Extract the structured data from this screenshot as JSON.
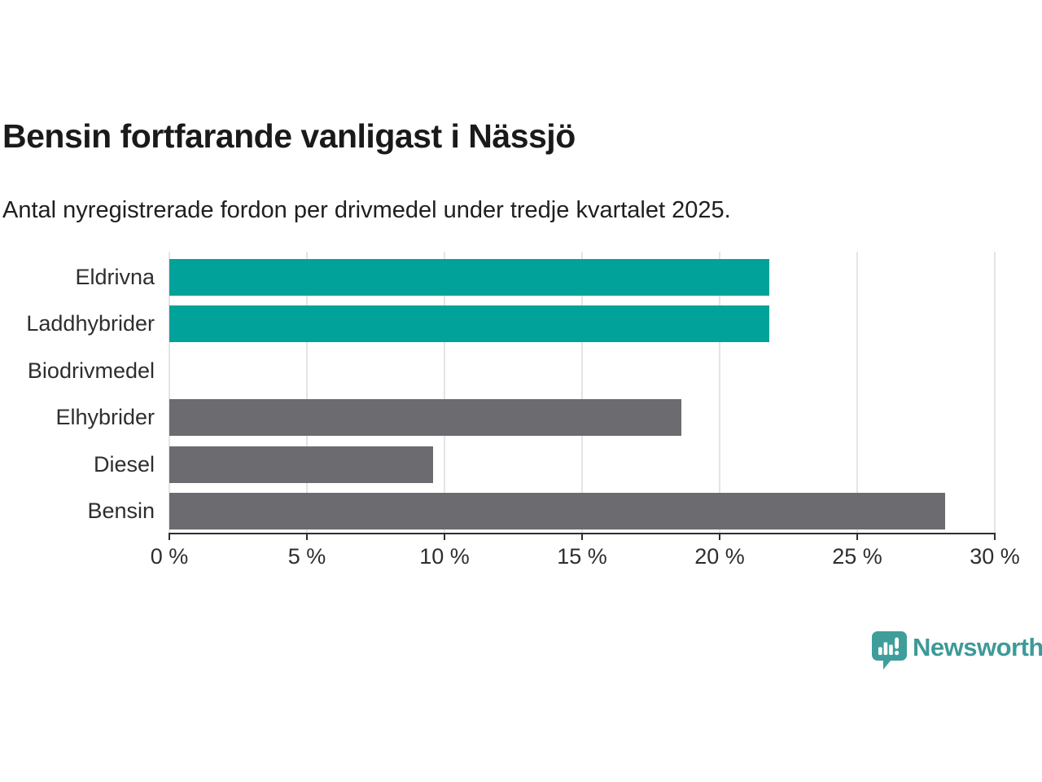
{
  "header": {
    "title": "Bensin fortfarande vanligast i Nässjö",
    "subtitle": "Antal nyregistrerade fordon per drivmedel under tredje kvartalet 2025."
  },
  "chart_data": {
    "type": "bar",
    "orientation": "horizontal",
    "title": "Bensin fortfarande vanligast i Nässjö",
    "subtitle": "Antal nyregistrerade fordon per drivmedel under tredje kvartalet 2025.",
    "categories": [
      "Eldrivna",
      "Laddhybrider",
      "Biodrivmedel",
      "Elhybrider",
      "Diesel",
      "Bensin"
    ],
    "values": [
      21.8,
      21.8,
      0,
      18.6,
      9.6,
      28.2
    ],
    "unit": "%",
    "bar_colors": [
      "#00a29a",
      "#00a29a",
      "#00a29a",
      "#6b6b70",
      "#6b6b70",
      "#6b6b70"
    ],
    "highlight_color": "#00a29a",
    "default_color": "#6b6b70",
    "xlim": [
      0,
      30
    ],
    "x_ticks": [
      0,
      5,
      10,
      15,
      20,
      25,
      30
    ],
    "x_tick_labels": [
      "0 %",
      "5 %",
      "10 %",
      "15 %",
      "20 %",
      "25 %",
      "30 %"
    ],
    "xlabel": "",
    "ylabel": "",
    "grid": "vertical-only",
    "gridline_color": "#e4e4e4",
    "axis_color": "#2e2e2e",
    "legend": "none"
  },
  "branding": {
    "logo_text": "Newsworthy",
    "logo_color": "#3d9a98",
    "logo_icon": "speech-bubble-bar-chart",
    "logo_icon_fill": "#3f9e9b"
  }
}
